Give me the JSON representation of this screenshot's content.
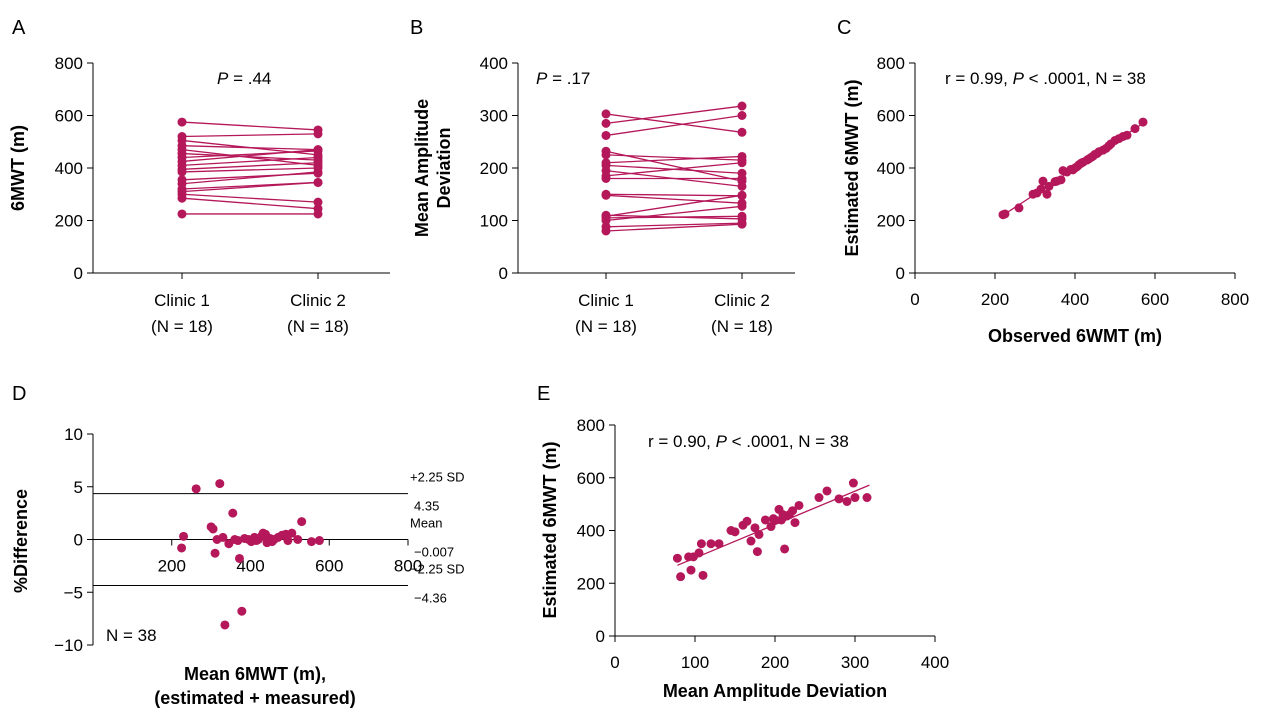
{
  "figure": {
    "accent_color": "#b5185a",
    "marker_color": "#b5185a"
  },
  "chart_data": [
    {
      "panel": "A",
      "type": "line",
      "ylabel": "6MWT (m)",
      "xlabel": "",
      "categories": [
        "Clinic 1",
        "Clinic 2"
      ],
      "category_sublabels": [
        "(N = 18)",
        "(N = 18)"
      ],
      "ylim": [
        0,
        800
      ],
      "yticks": [
        0,
        200,
        400,
        600,
        800
      ],
      "annotation": {
        "p_label": "P",
        "rest": " = .44"
      },
      "pairs": [
        [
          575,
          545
        ],
        [
          520,
          530
        ],
        [
          505,
          450
        ],
        [
          485,
          470
        ],
        [
          470,
          410
        ],
        [
          455,
          430
        ],
        [
          440,
          465
        ],
        [
          425,
          470
        ],
        [
          410,
          440
        ],
        [
          395,
          420
        ],
        [
          385,
          400
        ],
        [
          355,
          380
        ],
        [
          340,
          385
        ],
        [
          320,
          345
        ],
        [
          310,
          345
        ],
        [
          300,
          270
        ],
        [
          285,
          245
        ],
        [
          225,
          225
        ]
      ]
    },
    {
      "panel": "B",
      "type": "line",
      "ylabel": "Mean Amplitude",
      "ylabel2": "Deviation",
      "xlabel": "",
      "categories": [
        "Clinic 1",
        "Clinic 2"
      ],
      "category_sublabels": [
        "(N = 18)",
        "(N = 18)"
      ],
      "ylim": [
        0,
        400
      ],
      "yticks": [
        0,
        100,
        200,
        300,
        400
      ],
      "annotation": {
        "p_label": "P",
        "rest": " = .17"
      },
      "pairs": [
        [
          303,
          268
        ],
        [
          285,
          318
        ],
        [
          262,
          300
        ],
        [
          232,
          175
        ],
        [
          225,
          215
        ],
        [
          210,
          222
        ],
        [
          205,
          190
        ],
        [
          195,
          165
        ],
        [
          185,
          210
        ],
        [
          180,
          180
        ],
        [
          150,
          147
        ],
        [
          148,
          133
        ],
        [
          108,
          148
        ],
        [
          105,
          108
        ],
        [
          100,
          127
        ],
        [
          88,
          95
        ],
        [
          80,
          93
        ],
        [
          110,
          103
        ]
      ]
    },
    {
      "panel": "C",
      "type": "scatter",
      "xlabel": "Observed 6WMT (m)",
      "ylabel": "Estimated 6MWT (m)",
      "xlim": [
        0,
        800
      ],
      "ylim": [
        0,
        800
      ],
      "xticks": [
        0,
        200,
        400,
        600,
        800
      ],
      "yticks": [
        0,
        200,
        400,
        600,
        800
      ],
      "annotation": {
        "pre": "r = 0.99, ",
        "p_label": "P",
        "rest": " < .0001, N = 38"
      },
      "fit": [
        [
          220,
          220
        ],
        [
          575,
          575
        ]
      ],
      "points": [
        [
          220,
          222
        ],
        [
          225,
          225
        ],
        [
          260,
          248
        ],
        [
          295,
          300
        ],
        [
          305,
          305
        ],
        [
          315,
          320
        ],
        [
          320,
          350
        ],
        [
          330,
          300
        ],
        [
          335,
          330
        ],
        [
          350,
          348
        ],
        [
          355,
          350
        ],
        [
          365,
          355
        ],
        [
          370,
          390
        ],
        [
          380,
          385
        ],
        [
          390,
          395
        ],
        [
          395,
          393
        ],
        [
          400,
          400
        ],
        [
          405,
          405
        ],
        [
          410,
          412
        ],
        [
          415,
          418
        ],
        [
          420,
          422
        ],
        [
          430,
          430
        ],
        [
          435,
          435
        ],
        [
          440,
          440
        ],
        [
          445,
          445
        ],
        [
          450,
          452
        ],
        [
          455,
          455
        ],
        [
          460,
          462
        ],
        [
          470,
          468
        ],
        [
          478,
          475
        ],
        [
          485,
          485
        ],
        [
          490,
          492
        ],
        [
          500,
          505
        ],
        [
          510,
          512
        ],
        [
          520,
          520
        ],
        [
          530,
          525
        ],
        [
          550,
          550
        ],
        [
          570,
          575
        ]
      ]
    },
    {
      "panel": "D",
      "type": "scatter",
      "xlabel": "Mean 6MWT (m),",
      "xlabel2": "(estimated + measured)",
      "ylabel": "%Difference",
      "xlim": [
        0,
        800
      ],
      "ylim": [
        -10,
        10
      ],
      "xticks": [
        200,
        400,
        600,
        800
      ],
      "yticks": [
        -10,
        -5,
        0,
        5,
        10
      ],
      "annotation": {
        "n_label": "N = 38"
      },
      "ref_lines": [
        {
          "y": 4.35,
          "label_top": "+2.25 SD",
          "label_bottom": "4.35"
        },
        {
          "y": -0.007,
          "label_top": "Mean",
          "label_bottom": "−0.007"
        },
        {
          "y": -4.36,
          "label_top": "−2.25 SD",
          "label_bottom": "−4.36"
        }
      ],
      "points": [
        [
          225,
          -0.8
        ],
        [
          230,
          0.3
        ],
        [
          262,
          4.8
        ],
        [
          300,
          1.2
        ],
        [
          305,
          1.0
        ],
        [
          310,
          -1.3
        ],
        [
          315,
          0.0
        ],
        [
          322,
          5.3
        ],
        [
          330,
          0.2
        ],
        [
          335,
          -8.1
        ],
        [
          345,
          -0.4
        ],
        [
          355,
          2.5
        ],
        [
          360,
          0.0
        ],
        [
          368,
          -0.1
        ],
        [
          372,
          -1.8
        ],
        [
          378,
          -6.8
        ],
        [
          385,
          0.1
        ],
        [
          395,
          0.0
        ],
        [
          402,
          -0.2
        ],
        [
          410,
          0.2
        ],
        [
          415,
          -0.1
        ],
        [
          420,
          0.0
        ],
        [
          428,
          0.3
        ],
        [
          432,
          0.6
        ],
        [
          438,
          0.5
        ],
        [
          442,
          -0.3
        ],
        [
          450,
          0.1
        ],
        [
          455,
          -0.2
        ],
        [
          460,
          0.0
        ],
        [
          470,
          0.2
        ],
        [
          480,
          0.4
        ],
        [
          490,
          0.5
        ],
        [
          495,
          -0.1
        ],
        [
          505,
          0.6
        ],
        [
          520,
          0.0
        ],
        [
          530,
          1.7
        ],
        [
          555,
          -0.2
        ],
        [
          575,
          -0.1
        ]
      ]
    },
    {
      "panel": "E",
      "type": "scatter",
      "xlabel": "Mean Amplitude Deviation",
      "ylabel": "Estimated 6MWT (m)",
      "xlim": [
        0,
        400
      ],
      "ylim": [
        0,
        800
      ],
      "xticks": [
        0,
        100,
        200,
        300,
        400
      ],
      "yticks": [
        0,
        200,
        400,
        600,
        800
      ],
      "annotation": {
        "pre": "r = 0.90, ",
        "p_label": "P",
        "rest": " < .0001, N = 38"
      },
      "fit": [
        [
          78,
          268
        ],
        [
          318,
          572
        ]
      ],
      "points": [
        [
          78,
          295
        ],
        [
          82,
          225
        ],
        [
          92,
          300
        ],
        [
          95,
          250
        ],
        [
          98,
          300
        ],
        [
          105,
          315
        ],
        [
          108,
          350
        ],
        [
          110,
          230
        ],
        [
          120,
          350
        ],
        [
          130,
          350
        ],
        [
          145,
          400
        ],
        [
          150,
          395
        ],
        [
          160,
          420
        ],
        [
          165,
          435
        ],
        [
          170,
          360
        ],
        [
          175,
          410
        ],
        [
          178,
          320
        ],
        [
          180,
          385
        ],
        [
          188,
          440
        ],
        [
          195,
          415
        ],
        [
          198,
          445
        ],
        [
          200,
          440
        ],
        [
          205,
          480
        ],
        [
          208,
          440
        ],
        [
          210,
          460
        ],
        [
          212,
          330
        ],
        [
          215,
          455
        ],
        [
          218,
          460
        ],
        [
          222,
          475
        ],
        [
          225,
          430
        ],
        [
          230,
          495
        ],
        [
          255,
          525
        ],
        [
          265,
          550
        ],
        [
          280,
          520
        ],
        [
          290,
          510
        ],
        [
          298,
          580
        ],
        [
          300,
          525
        ],
        [
          315,
          525
        ]
      ]
    }
  ]
}
